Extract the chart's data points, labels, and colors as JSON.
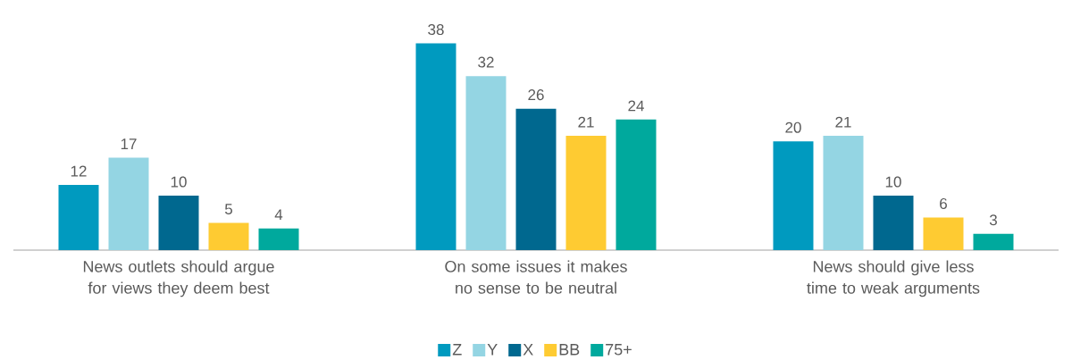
{
  "chart_data": {
    "type": "bar",
    "categories": [
      "News outlets should argue for views they deem best",
      "On some issues it makes no sense to be neutral",
      "News should give less time to weak arguments"
    ],
    "series": [
      {
        "name": "Z",
        "color": "#009abf",
        "values": [
          12,
          38,
          20
        ]
      },
      {
        "name": "Y",
        "color": "#94d5e3",
        "values": [
          17,
          32,
          21
        ]
      },
      {
        "name": "X",
        "color": "#00688f",
        "values": [
          10,
          26,
          10
        ]
      },
      {
        "name": "BB",
        "color": "#fecb32",
        "values": [
          5,
          21,
          6
        ]
      },
      {
        "name": "75+",
        "color": "#00a99d",
        "values": [
          4,
          24,
          3
        ]
      }
    ],
    "data_labels": true,
    "legend": "bottom",
    "tick_labels": "x"
  }
}
